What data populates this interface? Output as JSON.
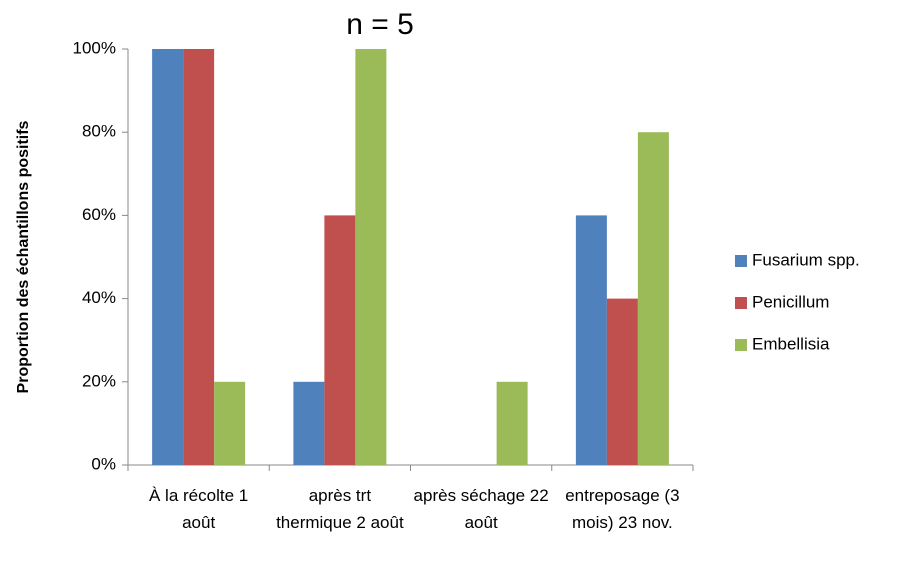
{
  "chart_data": {
    "type": "bar",
    "title": "n = 5",
    "y_label": "Proportion des échantillons positifs",
    "categories": [
      "À la récolte 1 août",
      "après trt thermique 2 août",
      "après séchage 22 août",
      "entreposage (3 mois) 23 nov."
    ],
    "series": [
      {
        "name": "Fusarium spp.",
        "color": "#4f81bd",
        "values": [
          100,
          20,
          0,
          60
        ]
      },
      {
        "name": "Penicillum",
        "color": "#c0504d",
        "values": [
          100,
          60,
          0,
          40
        ]
      },
      {
        "name": "Embellisia",
        "color": "#9bbb59",
        "values": [
          20,
          100,
          20,
          80
        ]
      }
    ],
    "ylim": [
      0,
      100
    ],
    "yticks": [
      {
        "value": 0,
        "label": "0%"
      },
      {
        "value": 20,
        "label": "20%"
      },
      {
        "value": 40,
        "label": "40%"
      },
      {
        "value": 60,
        "label": "60%"
      },
      {
        "value": 80,
        "label": "80%"
      },
      {
        "value": 100,
        "label": "100%"
      }
    ],
    "grid": false,
    "legend": "right"
  }
}
